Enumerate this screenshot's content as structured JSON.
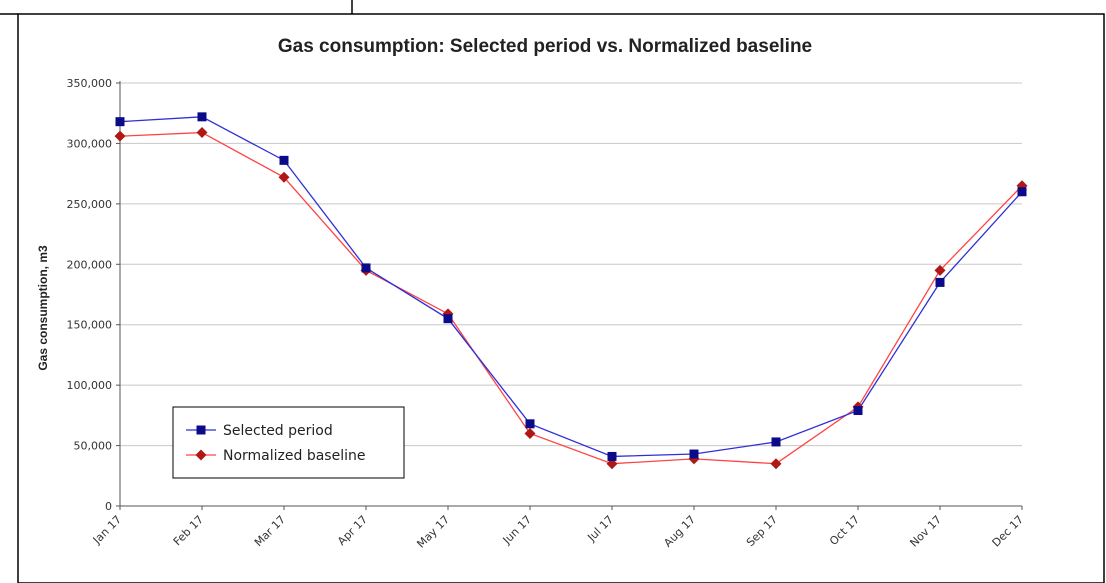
{
  "chart_data": {
    "type": "line",
    "title": "Gas consumption: Selected period vs. Normalized baseline",
    "xlabel": "",
    "ylabel": "Gas consumption, m3",
    "ylim": [
      0,
      350000
    ],
    "yticks": [
      "0",
      "50,000",
      "100,000",
      "150,000",
      "200,000",
      "250,000",
      "300,000",
      "350,000"
    ],
    "ytick_values": [
      0,
      50000,
      100000,
      150000,
      200000,
      250000,
      300000,
      350000
    ],
    "categories": [
      "Jan 17",
      "Feb 17",
      "Mar 17",
      "Apr 17",
      "May 17",
      "Jun 17",
      "Jul 17",
      "Aug 17",
      "Sep 17",
      "Oct 17",
      "Nov 17",
      "Dec 17"
    ],
    "grid": "horizontal",
    "legend_position": "bottom-left",
    "series": [
      {
        "name": "Selected period",
        "color": "#2f2fd6",
        "marker_color": "#0b0b8a",
        "marker": "square",
        "values": [
          318000,
          322000,
          286000,
          197000,
          155000,
          68000,
          41000,
          43000,
          53000,
          79000,
          185000,
          260000
        ]
      },
      {
        "name": "Normalized baseline",
        "color": "#ff4444",
        "marker_color": "#b01818",
        "marker": "diamond",
        "values": [
          306000,
          309000,
          272000,
          195000,
          159000,
          60000,
          35000,
          39000,
          35000,
          82000,
          195000,
          265000
        ]
      }
    ]
  }
}
